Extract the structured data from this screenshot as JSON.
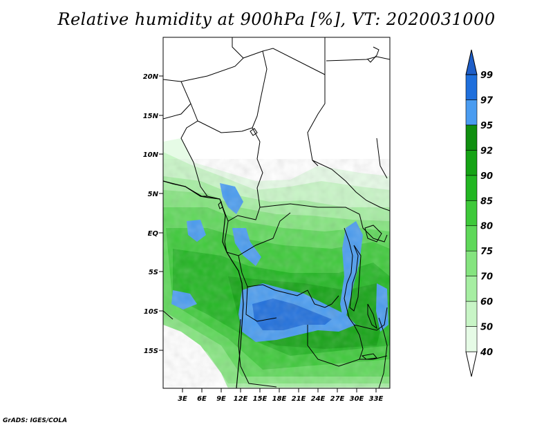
{
  "title": "Relative humidity at 900hPa [%], VT: 2020031000",
  "credit": "GrADS: IGES/COLA",
  "map": {
    "lat_range": [
      -20,
      25
    ],
    "lon_range": [
      0,
      35
    ],
    "lat_ticks": [
      "20N",
      "15N",
      "10N",
      "5N",
      "EQ",
      "5S",
      "10S",
      "15S"
    ],
    "lat_tick_values": [
      20,
      15,
      10,
      5,
      0,
      -5,
      -10,
      -15
    ],
    "lon_ticks": [
      "3E",
      "6E",
      "9E",
      "12E",
      "15E",
      "18E",
      "21E",
      "24E",
      "27E",
      "30E",
      "33E"
    ],
    "lon_tick_values": [
      3,
      6,
      9,
      12,
      15,
      18,
      21,
      24,
      27,
      30,
      33
    ]
  },
  "colorbar": {
    "levels": [
      "40",
      "50",
      "60",
      "70",
      "75",
      "80",
      "85",
      "90",
      "92",
      "95",
      "97",
      "99"
    ],
    "colors": [
      "#ffffff",
      "#e6fbe6",
      "#c8f5c6",
      "#a6eea2",
      "#85e47f",
      "#5fd85a",
      "#3ec93a",
      "#22b622",
      "#15a315",
      "#108f10",
      "#4a9cf0",
      "#1f6fdc",
      "#1e5ec8"
    ]
  }
}
